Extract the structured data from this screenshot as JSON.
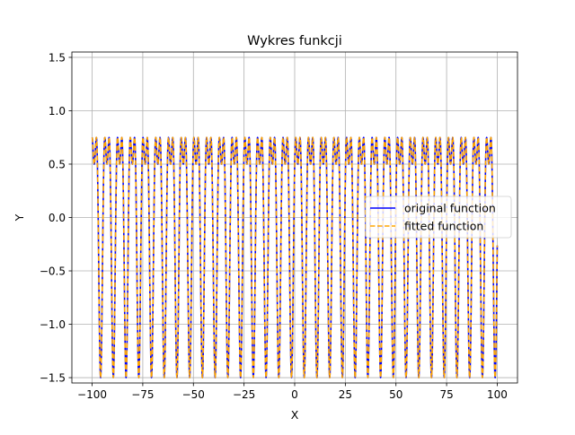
{
  "chart_data": {
    "type": "line",
    "title": "Wykres funkcji",
    "xlabel": "X",
    "ylabel": "Y",
    "xlim": [
      -110,
      110
    ],
    "ylim": [
      -1.55,
      1.55
    ],
    "xticks": [
      -100,
      -75,
      -50,
      -25,
      0,
      25,
      50,
      75,
      100
    ],
    "xtick_labels": [
      "−100",
      "−75",
      "−50",
      "−25",
      "0",
      "25",
      "50",
      "75",
      "100"
    ],
    "yticks": [
      -1.5,
      -1.0,
      -0.5,
      0.0,
      0.5,
      1.0,
      1.5
    ],
    "ytick_labels": [
      "−1.5",
      "−1.0",
      "−0.5",
      "0.0",
      "0.5",
      "1.0",
      "1.5"
    ],
    "grid": true,
    "legend_position": "center-right",
    "x_domain": [
      -100,
      100
    ],
    "series": [
      {
        "name": "original function",
        "color": "#0000ff",
        "style": "solid",
        "expression": "sin(x) + 0.5*cos(2x)",
        "components": [
          {
            "fn": "sin",
            "amplitude": 1.0,
            "frequency": 1.0
          },
          {
            "fn": "cos",
            "amplitude": 0.5,
            "frequency": 2.0
          }
        ]
      },
      {
        "name": "fitted function",
        "color": "#ffa500",
        "style": "dashed",
        "expression": "sin(x) + 0.5*cos(2x)",
        "components": [
          {
            "fn": "sin",
            "amplitude": 1.0,
            "frequency": 1.0
          },
          {
            "fn": "cos",
            "amplitude": 0.5,
            "frequency": 2.0
          }
        ]
      }
    ]
  }
}
